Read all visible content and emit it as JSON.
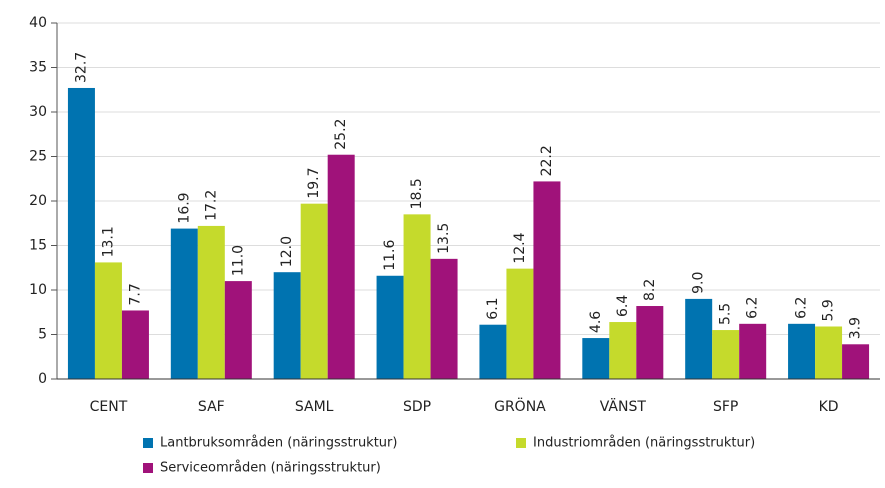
{
  "chart_data": {
    "type": "bar",
    "categories": [
      "CENT",
      "SAF",
      "SAML",
      "SDP",
      "GRÖNA",
      "VÄNST",
      "SFP",
      "KD"
    ],
    "series": [
      {
        "name": "Lantbruksområden (näringsstruktur)",
        "color": "#0073b0",
        "values": [
          32.7,
          16.9,
          12.0,
          11.6,
          6.1,
          4.6,
          9.0,
          6.2
        ],
        "value_labels": [
          "32.7",
          "16.9",
          "12.0",
          "11.6",
          "6.1",
          "4.6",
          "9.0",
          "6.2"
        ]
      },
      {
        "name": "Industriområden (näringsstruktur)",
        "color": "#c5da2c",
        "values": [
          13.1,
          17.2,
          19.7,
          18.5,
          12.4,
          6.4,
          5.5,
          5.9
        ],
        "value_labels": [
          "13.1",
          "17.2",
          "19.7",
          "18.5",
          "12.4",
          "6.4",
          "5.5",
          "5.9"
        ]
      },
      {
        "name": "Serviceområden (näringsstruktur)",
        "color": "#a0127a",
        "values": [
          7.7,
          11.0,
          25.2,
          13.5,
          22.2,
          8.2,
          6.2,
          3.9
        ],
        "value_labels": [
          "7.7",
          "11.0",
          "25.2",
          "13.5",
          "22.2",
          "8.2",
          "6.2",
          "3.9"
        ]
      }
    ],
    "ylim": [
      0,
      40
    ],
    "yticks": [
      0,
      5,
      10,
      15,
      20,
      25,
      30,
      35,
      40
    ],
    "grid": true
  }
}
